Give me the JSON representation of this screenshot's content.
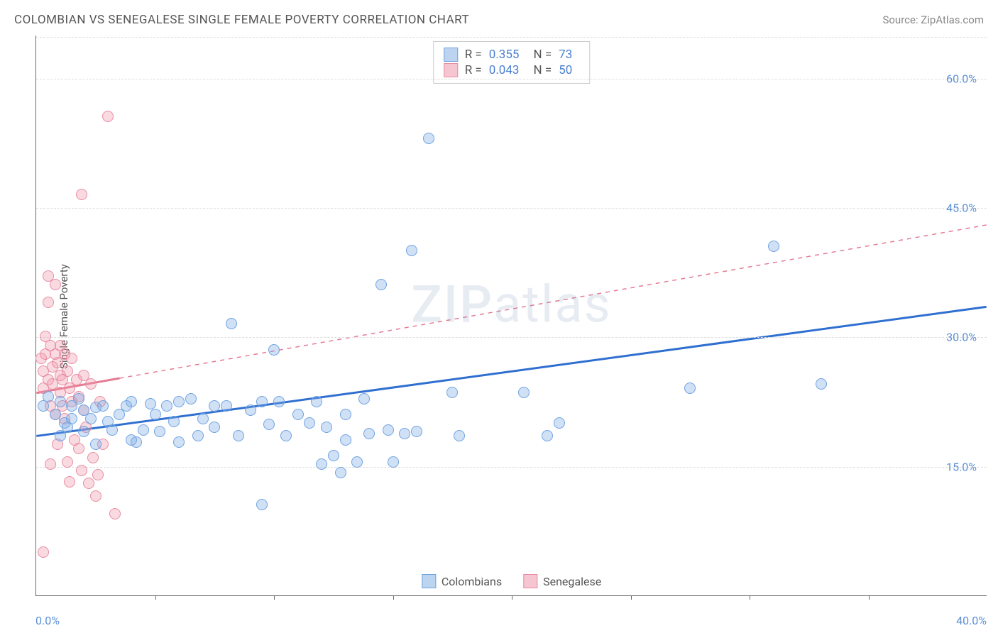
{
  "title": "COLOMBIAN VS SENEGALESE SINGLE FEMALE POVERTY CORRELATION CHART",
  "source_label": "Source: ZipAtlas.com",
  "watermark": "ZIPatlas",
  "chart": {
    "type": "scatter",
    "background_color": "#ffffff",
    "grid_color": "#dddddd",
    "axis_color": "#666666",
    "tick_label_color": "#5b8fd6",
    "xlim": [
      0,
      40
    ],
    "ylim": [
      0,
      65
    ],
    "x_ticks_major": [
      0,
      40
    ],
    "x_ticks_minor": [
      5,
      10,
      15,
      20,
      25,
      30,
      35
    ],
    "x_tick_labels": [
      "0.0%",
      "40.0%"
    ],
    "y_ticks": [
      15,
      30,
      45,
      60
    ],
    "y_tick_labels": [
      "15.0%",
      "30.0%",
      "45.0%",
      "60.0%"
    ],
    "y_axis_label": "Single Female Poverty",
    "marker_radius": 8,
    "marker_stroke_width": 1.5,
    "trend_solid_width": 3,
    "trend_dash_width": 1.5,
    "trend_dash_pattern": "6,6"
  },
  "series": {
    "colombians": {
      "label": "Colombians",
      "fill": "rgba(120,170,230,0.35)",
      "stroke": "#6fa3e0",
      "swatch_fill": "#bcd4f0",
      "swatch_border": "#6fa3e0",
      "trend_color": "#2f6fd0",
      "R": "0.355",
      "N": "73",
      "trend_line": {
        "x1": 0,
        "y1": 18.5,
        "x2": 40,
        "y2": 33.5
      },
      "trend_solid_until_x": 40,
      "points": [
        [
          0.3,
          22
        ],
        [
          0.5,
          23
        ],
        [
          0.8,
          21
        ],
        [
          1.0,
          22.5
        ],
        [
          1.0,
          18.5
        ],
        [
          1.2,
          20
        ],
        [
          1.3,
          19.5
        ],
        [
          1.5,
          22
        ],
        [
          1.5,
          20.5
        ],
        [
          1.8,
          22.8
        ],
        [
          2.0,
          21.5
        ],
        [
          2.0,
          19
        ],
        [
          2.3,
          20.5
        ],
        [
          2.5,
          21.8
        ],
        [
          2.5,
          17.5
        ],
        [
          2.8,
          22
        ],
        [
          3.0,
          20.2
        ],
        [
          3.2,
          19.2
        ],
        [
          3.5,
          21
        ],
        [
          3.8,
          22
        ],
        [
          4.0,
          22.5
        ],
        [
          4.0,
          18
        ],
        [
          4.2,
          17.8
        ],
        [
          4.5,
          19.2
        ],
        [
          4.8,
          22.2
        ],
        [
          5.0,
          21
        ],
        [
          5.2,
          19
        ],
        [
          5.5,
          22
        ],
        [
          5.8,
          20.2
        ],
        [
          6.0,
          22.5
        ],
        [
          6.0,
          17.8
        ],
        [
          6.5,
          22.8
        ],
        [
          6.8,
          18.5
        ],
        [
          7.0,
          20.5
        ],
        [
          7.5,
          22
        ],
        [
          7.5,
          19.5
        ],
        [
          8.0,
          22
        ],
        [
          8.5,
          18.5
        ],
        [
          8.2,
          31.5
        ],
        [
          9.0,
          21.5
        ],
        [
          9.5,
          22.5
        ],
        [
          9.8,
          19.8
        ],
        [
          10.0,
          28.5
        ],
        [
          10.2,
          22.5
        ],
        [
          10.5,
          18.5
        ],
        [
          11.0,
          21
        ],
        [
          11.5,
          20
        ],
        [
          11.8,
          22.5
        ],
        [
          12.0,
          15.2
        ],
        [
          12.2,
          19.5
        ],
        [
          12.5,
          16.2
        ],
        [
          13.0,
          18
        ],
        [
          13.0,
          21
        ],
        [
          13.5,
          15.5
        ],
        [
          13.8,
          22.8
        ],
        [
          14.0,
          18.8
        ],
        [
          14.5,
          36
        ],
        [
          14.8,
          19.2
        ],
        [
          15.0,
          15.5
        ],
        [
          15.5,
          18.8
        ],
        [
          15.8,
          40
        ],
        [
          16.0,
          19
        ],
        [
          16.5,
          53
        ],
        [
          17.5,
          23.5
        ],
        [
          17.8,
          18.5
        ],
        [
          20.5,
          23.5
        ],
        [
          21.5,
          18.5
        ],
        [
          22.0,
          20
        ],
        [
          27.5,
          24
        ],
        [
          31.0,
          40.5
        ],
        [
          33.0,
          24.5
        ],
        [
          9.5,
          10.5
        ],
        [
          12.8,
          14.2
        ]
      ]
    },
    "senegalese": {
      "label": "Senegalese",
      "fill": "rgba(240,150,170,0.35)",
      "stroke": "#e88ca3",
      "swatch_fill": "#f5c6d2",
      "swatch_border": "#e88ca3",
      "trend_color": "#e57b94",
      "R": "0.043",
      "N": "50",
      "trend_line": {
        "x1": 0,
        "y1": 23.5,
        "x2": 40,
        "y2": 43
      },
      "trend_solid_until_x": 3.5,
      "points": [
        [
          0.2,
          27.5
        ],
        [
          0.3,
          26
        ],
        [
          0.3,
          24
        ],
        [
          0.4,
          30
        ],
        [
          0.4,
          28
        ],
        [
          0.5,
          37
        ],
        [
          0.5,
          34
        ],
        [
          0.5,
          25
        ],
        [
          0.6,
          29
        ],
        [
          0.6,
          22
        ],
        [
          0.7,
          26.5
        ],
        [
          0.7,
          24.5
        ],
        [
          0.8,
          36
        ],
        [
          0.8,
          28
        ],
        [
          0.8,
          21
        ],
        [
          0.9,
          27
        ],
        [
          0.9,
          17.5
        ],
        [
          1.0,
          25.5
        ],
        [
          1.0,
          23.5
        ],
        [
          1.0,
          29
        ],
        [
          1.1,
          25
        ],
        [
          1.1,
          22
        ],
        [
          1.2,
          28
        ],
        [
          1.2,
          20.5
        ],
        [
          1.3,
          26
        ],
        [
          1.3,
          15.5
        ],
        [
          1.4,
          24
        ],
        [
          1.5,
          22.5
        ],
        [
          1.5,
          27.5
        ],
        [
          1.6,
          18
        ],
        [
          1.7,
          25
        ],
        [
          1.8,
          17
        ],
        [
          1.8,
          23
        ],
        [
          1.9,
          14.5
        ],
        [
          2.0,
          21.5
        ],
        [
          2.0,
          25.5
        ],
        [
          2.1,
          19.5
        ],
        [
          2.2,
          13
        ],
        [
          2.3,
          24.5
        ],
        [
          2.4,
          16
        ],
        [
          2.5,
          11.5
        ],
        [
          2.6,
          14
        ],
        [
          2.7,
          22.5
        ],
        [
          2.8,
          17.5
        ],
        [
          3.0,
          55.5
        ],
        [
          3.3,
          9.5
        ],
        [
          0.3,
          5
        ],
        [
          1.9,
          46.5
        ],
        [
          0.6,
          15.2
        ],
        [
          1.4,
          13.2
        ]
      ]
    }
  },
  "legend_top": {
    "R_label": "R =",
    "N_label": "N ="
  },
  "legend_bottom": {
    "items": [
      "colombians",
      "senegalese"
    ]
  }
}
